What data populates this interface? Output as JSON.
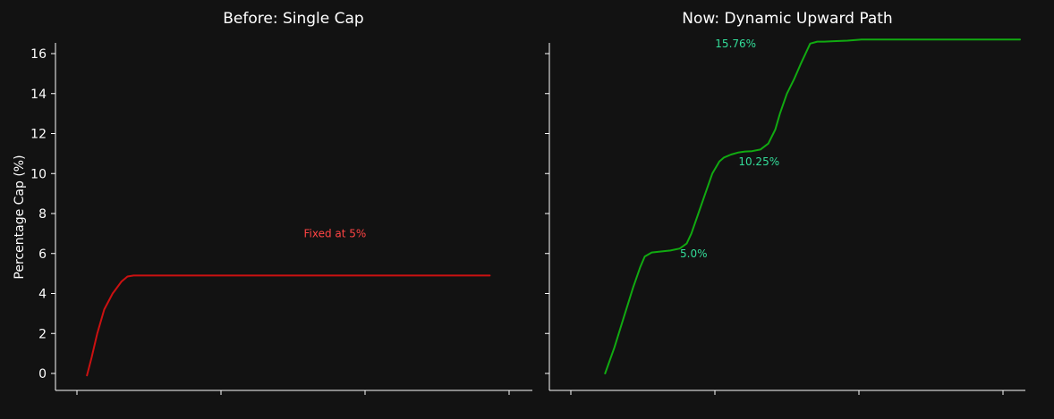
{
  "background": "#121212",
  "text_color": "#ffffff",
  "axis_color": "#ffffff",
  "chart_data": [
    {
      "type": "line",
      "title": "Before: Single Cap",
      "ylabel": "Percentage Cap (%)",
      "xlabel": "",
      "ylim": [
        -0.8,
        16.6
      ],
      "xlim": [
        0,
        100
      ],
      "y_ticks": [
        "0",
        "2",
        "4",
        "6",
        "8",
        "10",
        "12",
        "14",
        "16"
      ],
      "x_ticks_count": 4,
      "grid": false,
      "series": [
        {
          "color": "#cc1111",
          "x": [
            5.8,
            6.8,
            8.0,
            9.5,
            11.3,
            13.2,
            14.5,
            15.8,
            17,
            30,
            50,
            70,
            90,
            92.2
          ],
          "y": [
            -0.1,
            0.8,
            2.0,
            3.2,
            4.0,
            4.6,
            4.85,
            4.9,
            4.9,
            4.9,
            4.9,
            4.9,
            4.9,
            4.9
          ]
        }
      ],
      "annotations": [
        {
          "text": "Fixed at 5%",
          "x": 59,
          "y": 7.0,
          "color": "#ff4444"
        }
      ]
    },
    {
      "type": "line",
      "title": "Now: Dynamic Upward Path",
      "ylabel": "",
      "xlabel": "",
      "ylim": [
        -0.8,
        16.6
      ],
      "xlim": [
        0,
        100
      ],
      "y_ticks": [
        "0",
        "2",
        "4",
        "6",
        "8",
        "10",
        "12",
        "14",
        "16"
      ],
      "x_ticks_count": 4,
      "grid": false,
      "series": [
        {
          "color": "#11aa11",
          "x": [
            11,
            13,
            15,
            17,
            18.5,
            19.5,
            21,
            23,
            25,
            27,
            28.5,
            29.5,
            31,
            32.5,
            34,
            35.5,
            36.5,
            38,
            39.5,
            41,
            42.5,
            44.3,
            46,
            47.5,
            48.5,
            50,
            51.5,
            53,
            55,
            56.5,
            58,
            60,
            63,
            66,
            70,
            80,
            90,
            100
          ],
          "y": [
            0,
            1.3,
            2.8,
            4.3,
            5.3,
            5.85,
            6.05,
            6.1,
            6.15,
            6.25,
            6.5,
            7.0,
            8.0,
            9.0,
            10.0,
            10.6,
            10.8,
            10.95,
            11.05,
            11.1,
            11.12,
            11.2,
            11.5,
            12.2,
            13.0,
            14.0,
            14.7,
            15.5,
            16.5,
            16.6,
            16.6,
            16.62,
            16.65,
            16.7,
            16.7,
            16.7,
            16.7,
            16.7
          ]
        }
      ],
      "annotations": [
        {
          "text": "5.0%",
          "x": 30,
          "y": 6.0,
          "color": "#33dd99"
        },
        {
          "text": "10.25%",
          "x": 44,
          "y": 10.6,
          "color": "#33dd99"
        },
        {
          "text": "15.76%",
          "x": 39,
          "y": 16.5,
          "color": "#33dd99"
        }
      ]
    }
  ]
}
